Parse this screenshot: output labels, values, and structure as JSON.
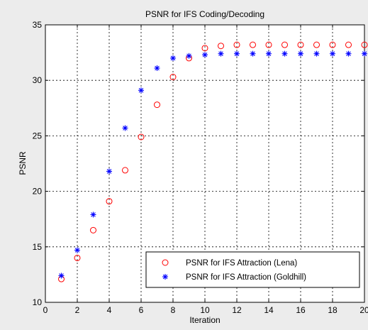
{
  "chart_data": {
    "type": "scatter",
    "title": "PSNR for IFS Coding/Decoding",
    "xlabel": "Iteration",
    "ylabel": "PSNR",
    "xlim": [
      0,
      20
    ],
    "ylim": [
      10,
      35
    ],
    "xticks": [
      0,
      2,
      4,
      6,
      8,
      10,
      12,
      14,
      16,
      18,
      20
    ],
    "yticks": [
      10,
      15,
      20,
      25,
      30,
      35
    ],
    "grid": true,
    "legend_position": "bottom-right",
    "series": [
      {
        "name": "PSNR for IFS Attraction (Lena)",
        "marker": "circle",
        "color": "#ff0000",
        "x": [
          1,
          2,
          3,
          4,
          5,
          6,
          7,
          8,
          9,
          10,
          11,
          12,
          13,
          14,
          15,
          16,
          17,
          18,
          19,
          20
        ],
        "y": [
          12.1,
          14.0,
          16.5,
          19.1,
          21.9,
          24.9,
          27.8,
          30.3,
          32.0,
          32.9,
          33.1,
          33.2,
          33.2,
          33.2,
          33.2,
          33.2,
          33.2,
          33.2,
          33.2,
          33.2
        ]
      },
      {
        "name": "PSNR for IFS Attraction (Goldhill)",
        "marker": "asterisk",
        "color": "#0000ff",
        "x": [
          1,
          2,
          3,
          4,
          5,
          6,
          7,
          8,
          9,
          10,
          11,
          12,
          13,
          14,
          15,
          16,
          17,
          18,
          19,
          20
        ],
        "y": [
          12.4,
          14.7,
          17.9,
          21.8,
          25.7,
          29.1,
          31.1,
          32.0,
          32.2,
          32.3,
          32.4,
          32.4,
          32.4,
          32.4,
          32.4,
          32.4,
          32.4,
          32.4,
          32.4,
          32.4
        ]
      }
    ]
  }
}
